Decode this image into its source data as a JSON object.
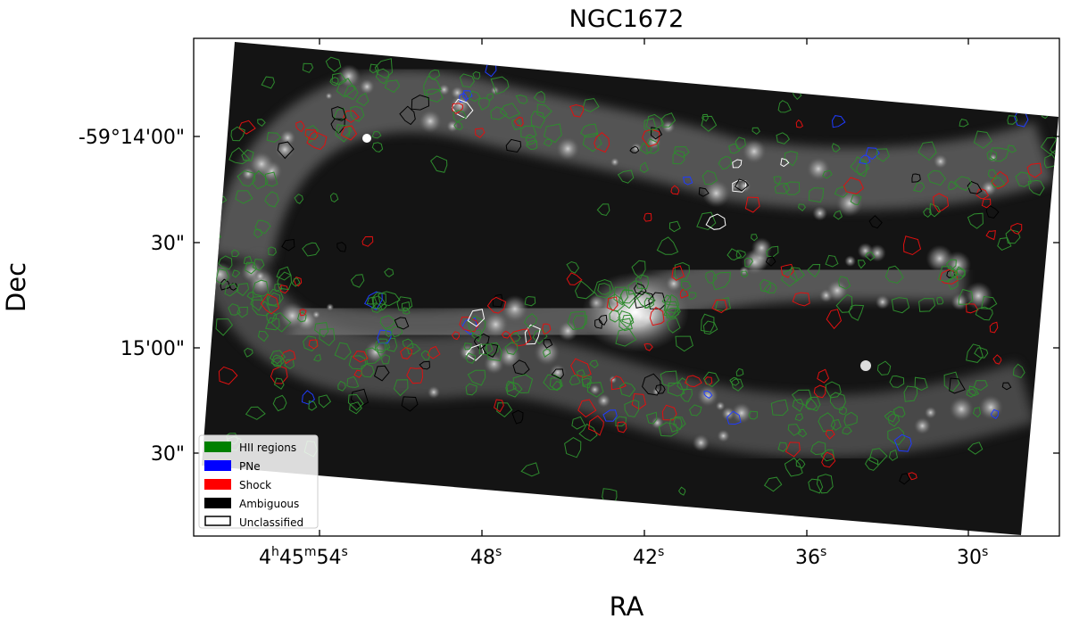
{
  "title": "NGC1672",
  "axes": {
    "xlabel": "RA",
    "ylabel": "Dec",
    "x_ticks": [
      {
        "value": "54",
        "label_main": "4",
        "sup_h": "h",
        "mid": "45",
        "sup_m": "m",
        "sec": "54",
        "sup_s": "s"
      },
      {
        "value": "48",
        "label_main": "48",
        "sup_s": "s"
      },
      {
        "value": "42",
        "label_main": "42",
        "sup_s": "s"
      },
      {
        "value": "36",
        "label_main": "36",
        "sup_s": "s"
      },
      {
        "value": "30",
        "label_main": "30",
        "sup_s": "s"
      }
    ],
    "y_ticks": [
      "-59°14'00\"",
      "30\"",
      "15'00\"",
      "30\""
    ]
  },
  "legend": {
    "placement": "lower-left",
    "items": [
      {
        "label": "HII regions",
        "color": "#008000",
        "style": "filled"
      },
      {
        "label": "PNe",
        "color": "#0000ff",
        "style": "filled"
      },
      {
        "label": "Shock",
        "color": "#ff0000",
        "style": "filled"
      },
      {
        "label": "Ambiguous",
        "color": "#000000",
        "style": "filled"
      },
      {
        "label": "Unclassified",
        "color": "#ffffff",
        "style": "outline"
      }
    ]
  },
  "colors": {
    "hii": "#2e8b2e",
    "pne": "#1f3bff",
    "shock": "#e01010",
    "ambiguous": "#000000",
    "unclassified": "#ffffff",
    "background": "#111111"
  }
}
